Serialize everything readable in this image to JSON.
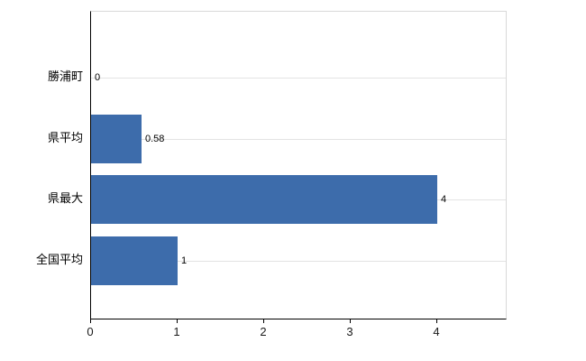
{
  "chart_data": {
    "type": "bar",
    "orientation": "horizontal",
    "title": "",
    "categories": [
      "勝浦町",
      "県平均",
      "県最大",
      "全国平均"
    ],
    "values": [
      0,
      0.58,
      4,
      1
    ],
    "value_labels": [
      "0",
      "0.58",
      "4",
      "1"
    ],
    "x_ticks": [
      "0",
      "1",
      "2",
      "3",
      "4"
    ],
    "x_tick_values": [
      0,
      1,
      2,
      3,
      4
    ],
    "xlim": [
      0,
      4.79
    ],
    "grid": "horizontal-light",
    "legend": "none",
    "colors": {
      "bar": "#3d6cab",
      "axis": "#000000",
      "gridline": "#e3e3e3",
      "plot_border": "#d9d9d9",
      "background": "#ffffff",
      "text": "#000000"
    }
  }
}
